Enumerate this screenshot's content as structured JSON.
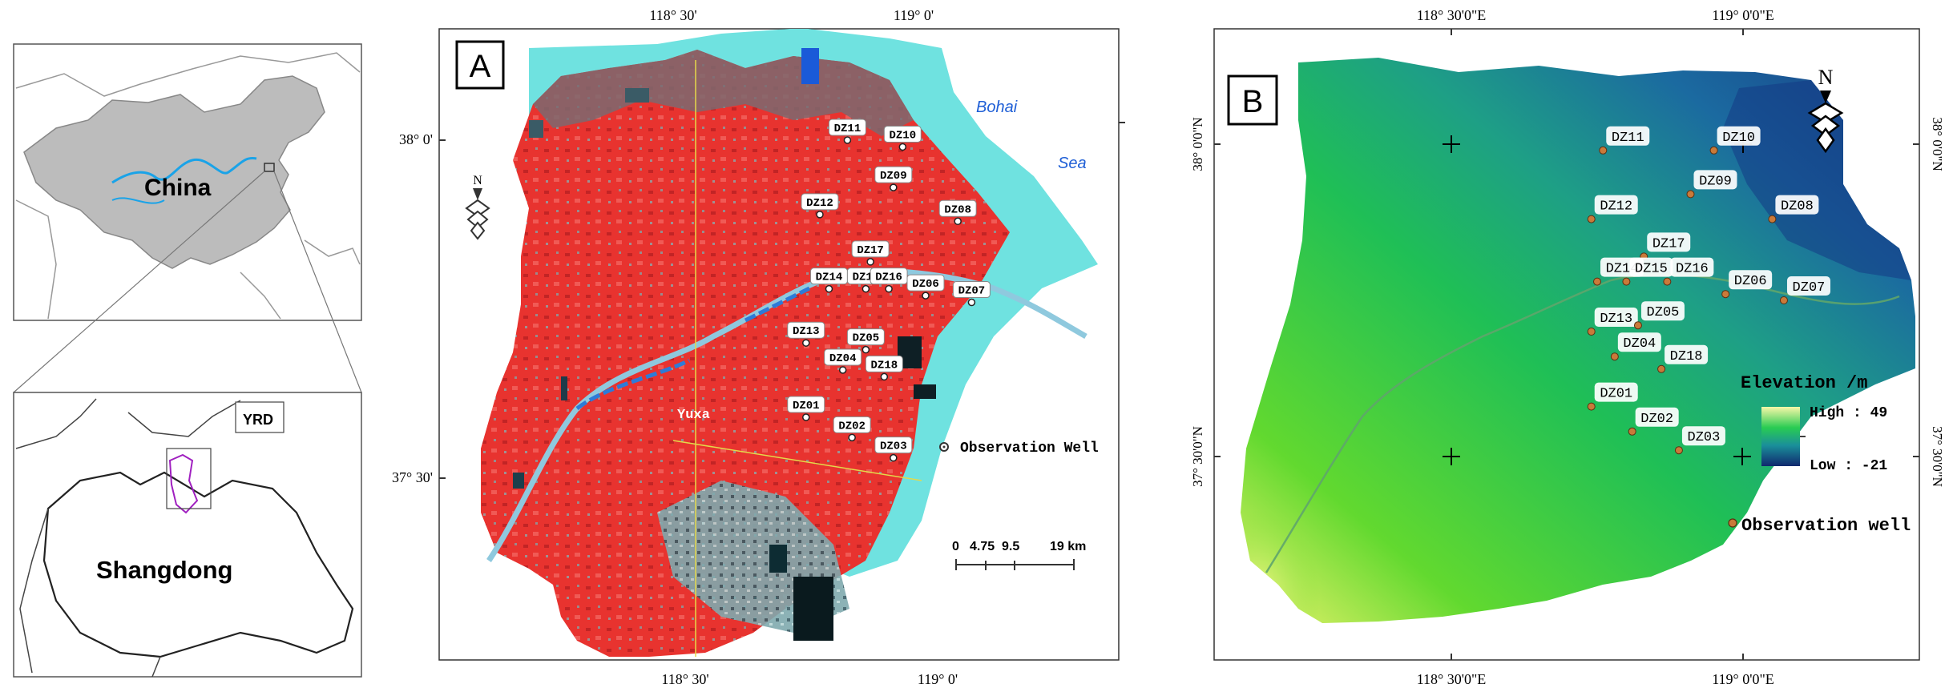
{
  "locator": {
    "china_label": "China",
    "yrd_label": "YRD",
    "shandong_label": "Shangdong"
  },
  "panel_a": {
    "letter": "A",
    "top_ticks": [
      "118° 30'",
      "119° 0'"
    ],
    "bottom_ticks": [
      "118° 30'",
      "119° 0'"
    ],
    "left_ticks": [
      "38° 0'",
      "37° 30'"
    ],
    "sea_labels": [
      "Bohai",
      "Sea"
    ],
    "city_label": "Yuxa",
    "legend_label": "Observation Well",
    "scale_labels": [
      "0",
      "4.75",
      "9.5",
      "19 km"
    ],
    "wells": [
      {
        "id": "DZ11",
        "x": 118.83,
        "y": 38.0
      },
      {
        "id": "DZ10",
        "x": 118.95,
        "y": 37.99
      },
      {
        "id": "DZ09",
        "x": 118.93,
        "y": 37.93
      },
      {
        "id": "DZ12",
        "x": 118.77,
        "y": 37.89
      },
      {
        "id": "DZ08",
        "x": 119.07,
        "y": 37.88
      },
      {
        "id": "DZ17",
        "x": 118.88,
        "y": 37.82
      },
      {
        "id": "DZ14",
        "x": 118.79,
        "y": 37.78
      },
      {
        "id": "DZ15",
        "x": 118.87,
        "y": 37.78
      },
      {
        "id": "DZ16",
        "x": 118.92,
        "y": 37.78
      },
      {
        "id": "DZ06",
        "x": 119.0,
        "y": 37.77
      },
      {
        "id": "DZ07",
        "x": 119.1,
        "y": 37.76
      },
      {
        "id": "DZ13",
        "x": 118.74,
        "y": 37.7
      },
      {
        "id": "DZ05",
        "x": 118.87,
        "y": 37.69
      },
      {
        "id": "DZ04",
        "x": 118.82,
        "y": 37.66
      },
      {
        "id": "DZ18",
        "x": 118.91,
        "y": 37.65
      },
      {
        "id": "DZ01",
        "x": 118.74,
        "y": 37.59
      },
      {
        "id": "DZ02",
        "x": 118.84,
        "y": 37.56
      },
      {
        "id": "DZ03",
        "x": 118.93,
        "y": 37.53
      }
    ]
  },
  "panel_b": {
    "letter": "B",
    "top_ticks": [
      "118° 30'0\"E",
      "119° 0'0\"E"
    ],
    "bottom_ticks": [
      "118° 30'0\"E",
      "119° 0'0\"E"
    ],
    "left_ticks": [
      "38° 0'0\"N",
      "37° 30'0\"N"
    ],
    "right_ticks": [
      "38° 0'0\"N",
      "37° 30'0\"N"
    ],
    "legend_title": "Elevation /m",
    "legend_high": "High : 49",
    "legend_low": "Low : -21",
    "legend_well": "Observation well",
    "elevation_range": [
      -21,
      49
    ],
    "wells": [
      {
        "id": "DZ11",
        "x": 118.76,
        "y": 37.99
      },
      {
        "id": "DZ10",
        "x": 118.95,
        "y": 37.99
      },
      {
        "id": "DZ09",
        "x": 118.91,
        "y": 37.92
      },
      {
        "id": "DZ12",
        "x": 118.74,
        "y": 37.88
      },
      {
        "id": "DZ08",
        "x": 119.05,
        "y": 37.88
      },
      {
        "id": "DZ17",
        "x": 118.83,
        "y": 37.82
      },
      {
        "id": "DZ14",
        "x": 118.75,
        "y": 37.78
      },
      {
        "id": "DZ15",
        "x": 118.8,
        "y": 37.78
      },
      {
        "id": "DZ16",
        "x": 118.87,
        "y": 37.78
      },
      {
        "id": "DZ06",
        "x": 118.97,
        "y": 37.76
      },
      {
        "id": "DZ07",
        "x": 119.07,
        "y": 37.75
      },
      {
        "id": "DZ13",
        "x": 118.74,
        "y": 37.7
      },
      {
        "id": "DZ05",
        "x": 118.82,
        "y": 37.71
      },
      {
        "id": "DZ04",
        "x": 118.78,
        "y": 37.66
      },
      {
        "id": "DZ18",
        "x": 118.86,
        "y": 37.64
      },
      {
        "id": "DZ01",
        "x": 118.74,
        "y": 37.58
      },
      {
        "id": "DZ02",
        "x": 118.81,
        "y": 37.54
      },
      {
        "id": "DZ03",
        "x": 118.89,
        "y": 37.51
      }
    ]
  }
}
